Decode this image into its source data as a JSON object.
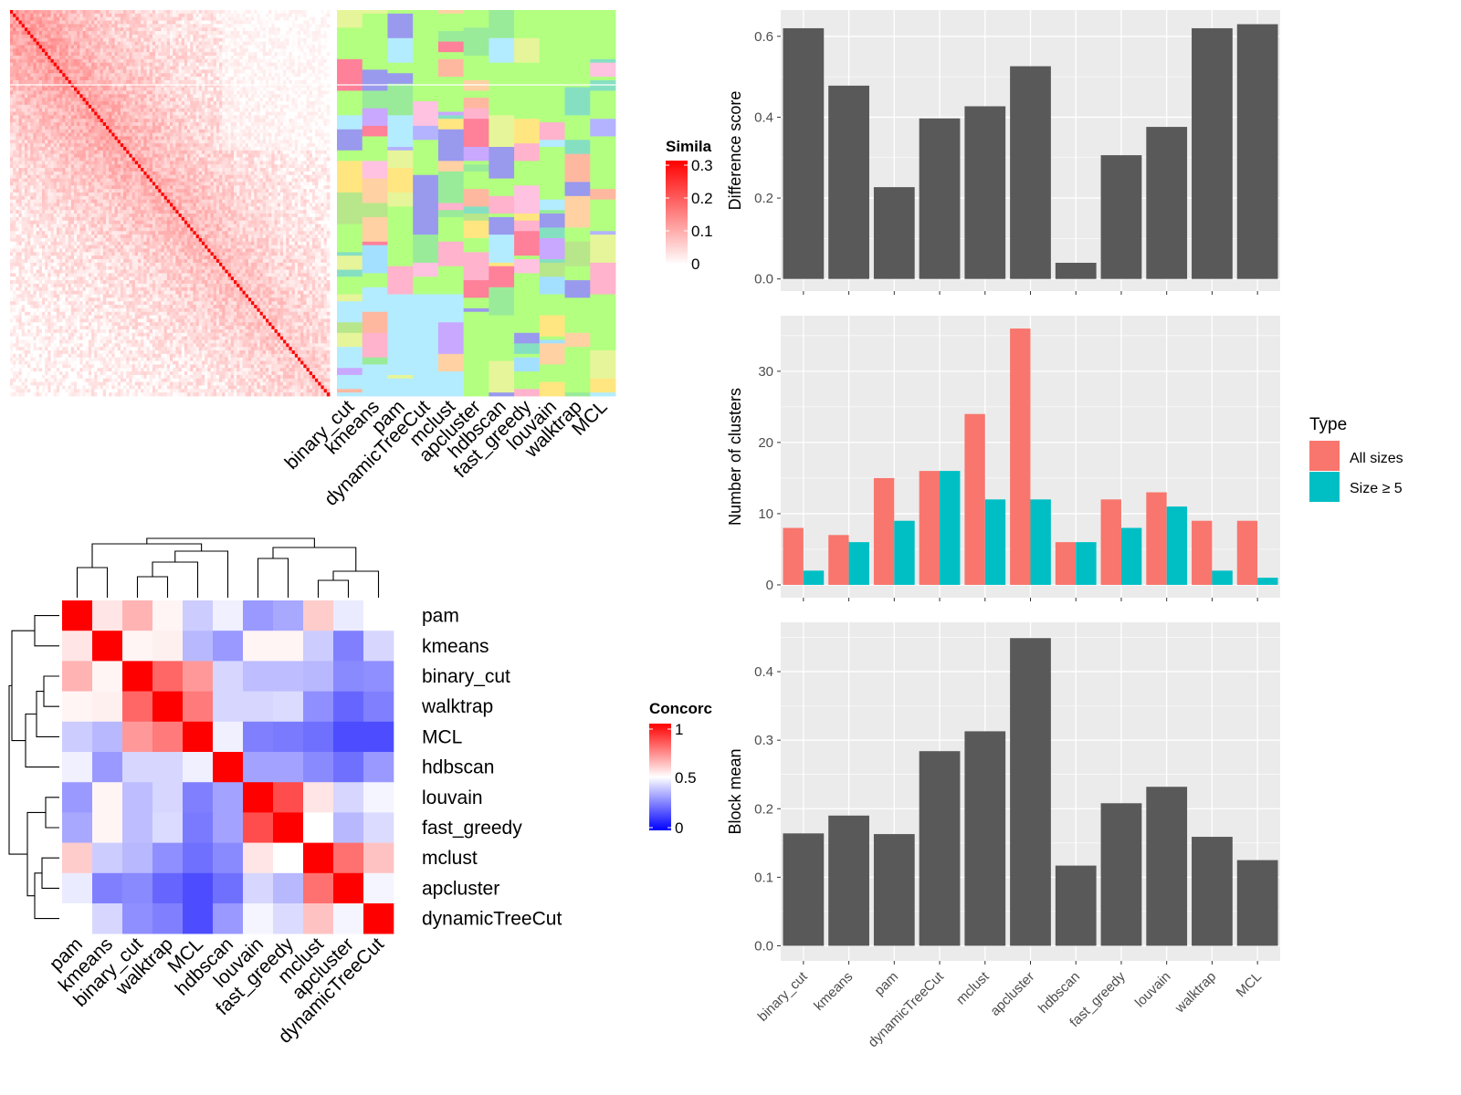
{
  "palette": {
    "panel_bg": "#EBEBEB",
    "grid": "#FFFFFF",
    "bar_dark": "#595959",
    "all_sizes": "#F8766D",
    "size5": "#00BFC4",
    "sim_high": "#FF0000",
    "conc_high": "#FF0000",
    "conc_mid": "#FFFFFF",
    "conc_low": "#0000FF"
  },
  "similarity_heatmap": {
    "method_labels": [
      "binary_cut",
      "kmeans",
      "pam",
      "dynamicTreeCut",
      "mclust",
      "apcluster",
      "hdbscan",
      "fast_greedy",
      "louvain",
      "walktrap",
      "MCL"
    ],
    "legend": {
      "title": "Simila",
      "ticks": [
        "0.3",
        "0.2",
        "0.1",
        "0"
      ]
    },
    "cluster_colors": [
      "#B3FF80",
      "#B3ECFF",
      "#FFB3CC",
      "#FFD1A3",
      "#99EB99",
      "#E6F599",
      "#B3B3FF",
      "#FF8099",
      "#C9A8FF",
      "#FFE680",
      "#85E0C2",
      "#FFC2E0",
      "#9999EE",
      "#B8E68A",
      "#FFB8A0",
      "#A3E0FF"
    ]
  },
  "concordance": {
    "methods": [
      "pam",
      "kmeans",
      "binary_cut",
      "walktrap",
      "MCL",
      "hdbscan",
      "louvain",
      "fast_greedy",
      "mclust",
      "apcluster",
      "dynamicTreeCut"
    ],
    "matrix": [
      [
        1.0,
        0.55,
        0.65,
        0.52,
        0.4,
        0.47,
        0.3,
        0.33,
        0.6,
        0.46,
        0.5
      ],
      [
        0.55,
        1.0,
        0.52,
        0.53,
        0.36,
        0.3,
        0.52,
        0.52,
        0.4,
        0.25,
        0.42
      ],
      [
        0.65,
        0.52,
        1.0,
        0.8,
        0.7,
        0.42,
        0.37,
        0.37,
        0.36,
        0.27,
        0.28
      ],
      [
        0.52,
        0.53,
        0.8,
        1.0,
        0.76,
        0.42,
        0.42,
        0.43,
        0.28,
        0.2,
        0.25
      ],
      [
        0.4,
        0.36,
        0.7,
        0.76,
        1.0,
        0.47,
        0.25,
        0.24,
        0.22,
        0.15,
        0.15
      ],
      [
        0.47,
        0.3,
        0.42,
        0.42,
        0.47,
        1.0,
        0.32,
        0.32,
        0.27,
        0.22,
        0.3
      ],
      [
        0.3,
        0.52,
        0.37,
        0.42,
        0.25,
        0.32,
        1.0,
        0.85,
        0.55,
        0.42,
        0.48
      ],
      [
        0.33,
        0.52,
        0.37,
        0.43,
        0.24,
        0.32,
        0.85,
        1.0,
        0.5,
        0.36,
        0.43
      ],
      [
        0.6,
        0.4,
        0.36,
        0.28,
        0.22,
        0.27,
        0.55,
        0.5,
        1.0,
        0.78,
        0.62
      ],
      [
        0.46,
        0.25,
        0.27,
        0.2,
        0.15,
        0.22,
        0.42,
        0.36,
        0.78,
        1.0,
        0.48
      ],
      [
        0.5,
        0.42,
        0.28,
        0.25,
        0.15,
        0.3,
        0.48,
        0.43,
        0.62,
        0.48,
        1.0
      ]
    ],
    "legend": {
      "title": "Concorc",
      "ticks": [
        "1",
        "0.5",
        "0"
      ]
    }
  },
  "chart_data": [
    {
      "type": "bar",
      "categories": [
        "binary_cut",
        "kmeans",
        "pam",
        "dynamicTreeCut",
        "mclust",
        "apcluster",
        "hdbscan",
        "fast_greedy",
        "louvain",
        "walktrap",
        "MCL"
      ],
      "values": [
        0.62,
        0.478,
        0.227,
        0.397,
        0.427,
        0.526,
        0.04,
        0.306,
        0.376,
        0.62,
        0.63
      ],
      "ylabel": "Difference score",
      "yticks": [
        "0.0",
        "0.2",
        "0.4",
        "0.6"
      ],
      "ylim": [
        -0.03,
        0.665
      ]
    },
    {
      "type": "bar",
      "categories": [
        "binary_cut",
        "kmeans",
        "pam",
        "dynamicTreeCut",
        "mclust",
        "apcluster",
        "hdbscan",
        "fast_greedy",
        "louvain",
        "walktrap",
        "MCL"
      ],
      "series": [
        {
          "name": "All sizes",
          "values": [
            8,
            7,
            15,
            16,
            24,
            36,
            6,
            12,
            13,
            9,
            9
          ]
        },
        {
          "name": "Size ≥ 5",
          "values": [
            2,
            6,
            9,
            16,
            12,
            12,
            6,
            8,
            11,
            2,
            1
          ]
        }
      ],
      "ylabel": "Number of clusters",
      "yticks": [
        "0",
        "10",
        "20",
        "30"
      ],
      "ylim": [
        -1.8,
        37.8
      ],
      "legend_title": "Type"
    },
    {
      "type": "bar",
      "categories": [
        "binary_cut",
        "kmeans",
        "pam",
        "dynamicTreeCut",
        "mclust",
        "apcluster",
        "hdbscan",
        "fast_greedy",
        "louvain",
        "walktrap",
        "MCL"
      ],
      "values": [
        0.164,
        0.19,
        0.163,
        0.284,
        0.313,
        0.449,
        0.117,
        0.208,
        0.232,
        0.159,
        0.125
      ],
      "ylabel": "Block mean",
      "yticks": [
        "0.0",
        "0.1",
        "0.2",
        "0.3",
        "0.4"
      ],
      "ylim": [
        -0.022,
        0.472
      ]
    }
  ]
}
